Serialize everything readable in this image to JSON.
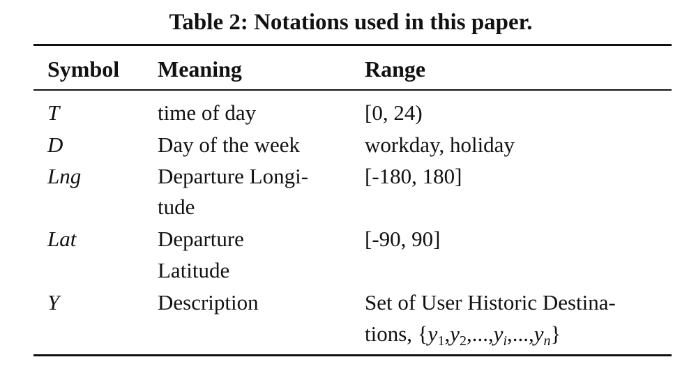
{
  "caption": "Table 2: Notations used in this paper.",
  "table": {
    "headers": [
      "Symbol",
      "Meaning",
      "Range"
    ],
    "rows": [
      {
        "symbol": "T",
        "meaning": [
          "time of day"
        ],
        "range": [
          "[0, 24)"
        ]
      },
      {
        "symbol": "D",
        "meaning": [
          "Day of the week"
        ],
        "range": [
          "workday, holiday"
        ]
      },
      {
        "symbol": "Lng",
        "meaning": [
          "Departure Longi-",
          "tude"
        ],
        "range": [
          "[-180, 180]"
        ]
      },
      {
        "symbol": "Lat",
        "meaning": [
          "Departure",
          "Latitude"
        ],
        "range": [
          "[-90, 90]"
        ]
      },
      {
        "symbol": "Y",
        "meaning": [
          "Description"
        ],
        "range": [
          "Set of User Historic Destina-",
          "tions, {y1,y2,...,yi,...,yn}"
        ]
      }
    ],
    "set_notation": {
      "prefix": "tions, {",
      "items": [
        {
          "var": "y",
          "sub": "1"
        },
        {
          "var": "y",
          "sub": "2"
        },
        {
          "var": "...",
          "sub": ""
        },
        {
          "var": "y",
          "sub": "i"
        },
        {
          "var": "...",
          "sub": ""
        },
        {
          "var": "y",
          "sub": "n"
        }
      ],
      "suffix": "}"
    }
  }
}
